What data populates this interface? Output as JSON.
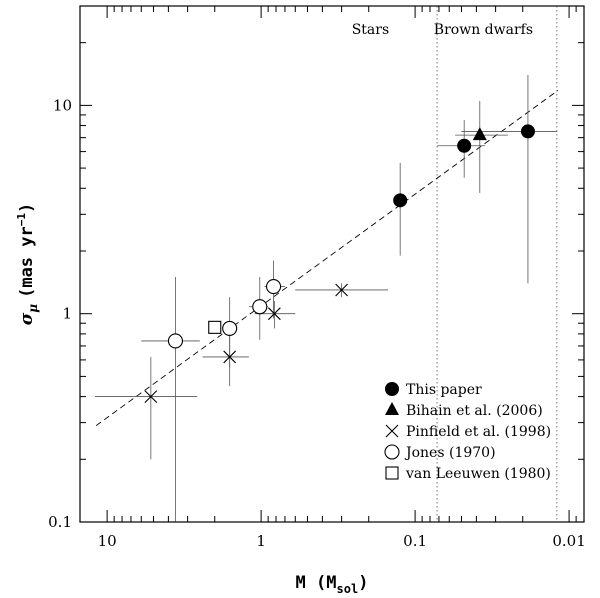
{
  "chart_data": {
    "type": "scatter",
    "title": "",
    "xlabel": "M (M",
    "xlabel_sub": "sol",
    "xlabel_close": ")",
    "ylabel": "σ",
    "ylabel_sub": "μ",
    "ylabel_rest": "(mas yr",
    "ylabel_sup": "−1",
    "ylabel_close": ")",
    "x_scale": "log",
    "y_scale": "log",
    "x_reversed": true,
    "xlim": [
      15,
      0.008
    ],
    "ylim": [
      0.1,
      30
    ],
    "x_ticks": [
      {
        "value": 10,
        "label": "10"
      },
      {
        "value": 1,
        "label": "1"
      },
      {
        "value": 0.1,
        "label": "0.1"
      },
      {
        "value": 0.01,
        "label": "0.01"
      }
    ],
    "y_ticks": [
      {
        "value": 0.1,
        "label": "0.1"
      },
      {
        "value": 1,
        "label": "1"
      },
      {
        "value": 10,
        "label": "10"
      }
    ],
    "regions": [
      {
        "label": "Stars",
        "x": 0.195
      },
      {
        "label": "Brown dwarfs",
        "x": 0.036
      }
    ],
    "boundaries": [
      0.072,
      0.012
    ],
    "fit_line": {
      "style": "dashed",
      "points": [
        [
          11.8,
          0.29
        ],
        [
          0.0118,
          11.8
        ]
      ]
    },
    "series": [
      {
        "name": "This paper",
        "marker": "filled-circle",
        "points": [
          {
            "x": 0.125,
            "y": 3.5,
            "y_err": [
              1.9,
              5.3
            ]
          },
          {
            "x": 0.048,
            "y": 6.4,
            "y_err": [
              4.5,
              8.5
            ],
            "x_err": [
              0.072,
              0.035
            ]
          },
          {
            "x": 0.0185,
            "y": 7.5,
            "y_err": [
              1.4,
              14
            ],
            "x_err": [
              0.05,
              0.012
            ]
          }
        ]
      },
      {
        "name": "Bihain et al. (2006)",
        "marker": "filled-triangle",
        "points": [
          {
            "x": 0.038,
            "y": 7.2,
            "y_err": [
              3.8,
              10.5
            ],
            "x_err": [
              0.055,
              0.025
            ]
          }
        ]
      },
      {
        "name": "Pinfield et al. (1998)",
        "marker": "cross",
        "points": [
          {
            "x": 5.2,
            "y": 0.4,
            "y_err": [
              0.2,
              0.62
            ],
            "x_err": [
              12,
              2.6
            ]
          },
          {
            "x": 1.6,
            "y": 0.62,
            "y_err": [
              0.45,
              0.85
            ],
            "x_err": [
              2.4,
              1.2
            ]
          },
          {
            "x": 0.82,
            "y": 1.0,
            "y_err": [
              0.85,
              1.15
            ],
            "x_err": [
              1.1,
              0.6
            ]
          },
          {
            "x": 0.3,
            "y": 1.3,
            "y_err": [
              1.2,
              1.4
            ],
            "x_err": [
              0.6,
              0.15
            ]
          }
        ]
      },
      {
        "name": "Jones (1970)",
        "marker": "open-circle",
        "points": [
          {
            "x": 3.6,
            "y": 0.74,
            "y_err": [
              0.1,
              1.5
            ],
            "x_err": [
              6,
              2.5
            ]
          },
          {
            "x": 1.6,
            "y": 0.85,
            "y_err": [
              0.55,
              1.2
            ]
          },
          {
            "x": 1.02,
            "y": 1.08,
            "y_err": [
              0.75,
              1.5
            ],
            "x_err": [
              1.2,
              0.9
            ]
          },
          {
            "x": 0.83,
            "y": 1.35,
            "y_err": [
              0.95,
              1.8
            ],
            "x_err": [
              0.95,
              0.7
            ]
          }
        ]
      },
      {
        "name": "van Leeuwen (1980)",
        "marker": "open-square",
        "points": [
          {
            "x": 2.0,
            "y": 0.86
          }
        ]
      }
    ],
    "legend": {
      "position": "bottom-right",
      "entries": [
        {
          "label": "This paper",
          "marker": "filled-circle"
        },
        {
          "label": "Bihain et al. (2006)",
          "marker": "filled-triangle"
        },
        {
          "label": "Pinfield et al. (1998)",
          "marker": "cross"
        },
        {
          "label": "Jones (1970)",
          "marker": "open-circle"
        },
        {
          "label": "van Leeuwen (1980)",
          "marker": "open-square"
        }
      ]
    }
  }
}
